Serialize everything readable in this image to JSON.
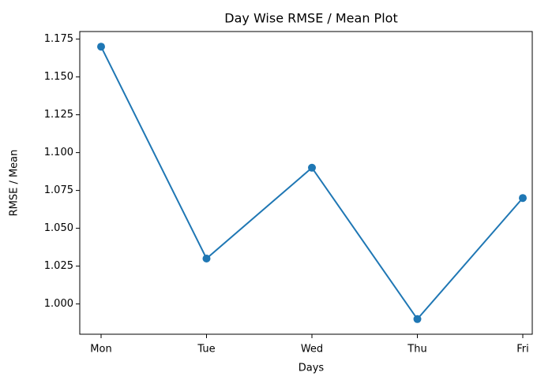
{
  "chart_data": {
    "type": "line",
    "title": "Day Wise RMSE / Mean Plot",
    "xlabel": "Days",
    "ylabel": "RMSE / Mean",
    "categories": [
      "Mon",
      "Tue",
      "Wed",
      "Thu",
      "Fri"
    ],
    "series": [
      {
        "name": "RMSE / Mean",
        "color": "#1f77b4",
        "values": [
          1.17,
          1.03,
          1.09,
          0.99,
          1.07
        ]
      }
    ],
    "ylim": [
      0.98,
      1.18
    ],
    "yticks": [
      {
        "value": 1,
        "label": "1.000"
      },
      1.025,
      {
        "value": 1.05,
        "label": "1.050"
      },
      1.075,
      {
        "value": 1.1,
        "label": "1.100"
      },
      1.125,
      {
        "value": 1.15,
        "label": "1.150"
      },
      1.175
    ],
    "grid": false,
    "markers": true
  }
}
